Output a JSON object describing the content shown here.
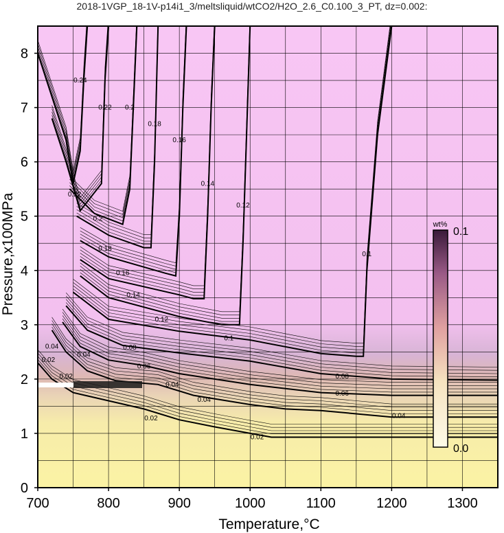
{
  "chart_data": {
    "type": "heatmap",
    "title": "2018-1VGP_18-1V-p14i1_3/meltsliquid/wtCO2/H2O_2.6_C0.100_3_PT, dz=0.002:",
    "xlabel": "Temperature,°C",
    "ylabel": "Pressure,x100MPa",
    "xlim": [
      700,
      1350
    ],
    "ylim": [
      0,
      8.5
    ],
    "x_ticks": [
      700,
      800,
      900,
      1000,
      1100,
      1200,
      1300
    ],
    "y_ticks": [
      0,
      1,
      2,
      3,
      4,
      5,
      6,
      7,
      8
    ],
    "grid": true,
    "z_unit": "wt%",
    "z_range": [
      0.0,
      0.1
    ],
    "colorbar": {
      "unit": "wt%",
      "max_label": "0.1",
      "min_label": "0.0",
      "placement": "right"
    },
    "contours": [
      {
        "level": "0.02",
        "points": [
          [
            700,
            2.3
          ],
          [
            720,
            2.0
          ],
          [
            750,
            1.75
          ],
          [
            800,
            1.6
          ],
          [
            850,
            1.45
          ],
          [
            900,
            1.25
          ],
          [
            950,
            1.12
          ],
          [
            1000,
            1.0
          ],
          [
            1030,
            0.93
          ],
          [
            1100,
            0.93
          ],
          [
            1200,
            0.93
          ],
          [
            1350,
            0.93
          ]
        ]
      },
      {
        "level": "0.04",
        "points": [
          [
            720,
            2.9
          ],
          [
            740,
            2.5
          ],
          [
            770,
            2.15
          ],
          [
            810,
            1.97
          ],
          [
            870,
            1.9
          ],
          [
            920,
            1.7
          ],
          [
            1000,
            1.53
          ],
          [
            1050,
            1.45
          ],
          [
            1100,
            1.42
          ],
          [
            1200,
            1.3
          ],
          [
            1350,
            1.3
          ]
        ]
      },
      {
        "level": "0.06",
        "points": [
          [
            735,
            3.05
          ],
          [
            760,
            2.6
          ],
          [
            800,
            2.35
          ],
          [
            850,
            2.25
          ],
          [
            900,
            2.1
          ],
          [
            1000,
            1.9
          ],
          [
            1100,
            1.75
          ],
          [
            1200,
            1.7
          ],
          [
            1350,
            1.7
          ]
        ]
      },
      {
        "level": "0.08",
        "points": [
          [
            740,
            3.35
          ],
          [
            770,
            2.9
          ],
          [
            820,
            2.62
          ],
          [
            900,
            2.48
          ],
          [
            1000,
            2.33
          ],
          [
            1100,
            2.1
          ],
          [
            1200,
            2.0
          ],
          [
            1350,
            1.98
          ]
        ]
      },
      {
        "level": "0.1",
        "points": [
          [
            750,
            3.6
          ],
          [
            800,
            3.1
          ],
          [
            900,
            2.88
          ],
          [
            1000,
            2.72
          ],
          [
            1100,
            2.47
          ],
          [
            1150,
            2.42
          ],
          [
            1160,
            2.42
          ],
          [
            1165,
            4.0
          ],
          [
            1180,
            6.5
          ],
          [
            1200,
            8.5
          ]
        ]
      },
      {
        "level": "0.12",
        "points": [
          [
            760,
            3.9
          ],
          [
            800,
            3.5
          ],
          [
            900,
            3.15
          ],
          [
            960,
            3.0
          ],
          [
            985,
            3.0
          ],
          [
            990,
            4.5
          ],
          [
            995,
            6.5
          ],
          [
            1000,
            8.5
          ]
        ]
      },
      {
        "level": "0.14",
        "points": [
          [
            760,
            4.2
          ],
          [
            800,
            3.85
          ],
          [
            900,
            3.55
          ],
          [
            920,
            3.48
          ],
          [
            935,
            3.48
          ],
          [
            940,
            5.0
          ],
          [
            945,
            7.0
          ],
          [
            950,
            8.5
          ]
        ]
      },
      {
        "level": "0.16",
        "points": [
          [
            760,
            4.55
          ],
          [
            800,
            4.25
          ],
          [
            880,
            3.95
          ],
          [
            895,
            3.9
          ],
          [
            900,
            5.0
          ],
          [
            905,
            7.0
          ],
          [
            910,
            8.5
          ]
        ]
      },
      {
        "level": "0.18",
        "points": [
          [
            755,
            5.0
          ],
          [
            800,
            4.65
          ],
          [
            850,
            4.42
          ],
          [
            860,
            4.42
          ],
          [
            865,
            6.0
          ],
          [
            870,
            8.5
          ]
        ]
      },
      {
        "level": "0.2",
        "points": [
          [
            745,
            5.5
          ],
          [
            780,
            5.05
          ],
          [
            820,
            4.85
          ],
          [
            830,
            5.5
          ],
          [
            835,
            7.0
          ],
          [
            840,
            8.5
          ]
        ]
      },
      {
        "level": "0.22",
        "points": [
          [
            720,
            6.8
          ],
          [
            740,
            6.0
          ],
          [
            760,
            5.1
          ],
          [
            790,
            5.6
          ],
          [
            795,
            7.5
          ],
          [
            800,
            8.5
          ]
        ]
      },
      {
        "level": "0.24",
        "points": [
          [
            700,
            8.0
          ],
          [
            720,
            7.2
          ],
          [
            740,
            6.4
          ],
          [
            750,
            5.6
          ],
          [
            760,
            6.2
          ],
          [
            765,
            7.5
          ],
          [
            770,
            8.5
          ]
        ]
      }
    ],
    "contour_labels": [
      {
        "text": "0.02",
        "x": 1010,
        "y": 0.93
      },
      {
        "text": "0.02",
        "x": 860,
        "y": 1.28
      },
      {
        "text": "0.02",
        "x": 740,
        "y": 2.05
      },
      {
        "text": "0.02",
        "x": 715,
        "y": 2.35
      },
      {
        "text": "0.04",
        "x": 1210,
        "y": 1.32
      },
      {
        "text": "0.04",
        "x": 935,
        "y": 1.62
      },
      {
        "text": "0.04",
        "x": 890,
        "y": 1.9
      },
      {
        "text": "0.04",
        "x": 765,
        "y": 2.45
      },
      {
        "text": "0.04",
        "x": 720,
        "y": 2.6
      },
      {
        "text": "0.06",
        "x": 1130,
        "y": 1.73
      },
      {
        "text": "0.06",
        "x": 850,
        "y": 2.23
      },
      {
        "text": "0.08",
        "x": 1130,
        "y": 2.05
      },
      {
        "text": "0.08",
        "x": 830,
        "y": 2.58
      },
      {
        "text": "0.1",
        "x": 1165,
        "y": 4.3
      },
      {
        "text": "0.1",
        "x": 970,
        "y": 2.75
      },
      {
        "text": "0.12",
        "x": 990,
        "y": 5.2
      },
      {
        "text": "0.12",
        "x": 875,
        "y": 3.1
      },
      {
        "text": "0.14",
        "x": 940,
        "y": 5.6
      },
      {
        "text": "0.14",
        "x": 835,
        "y": 3.55
      },
      {
        "text": "0.16",
        "x": 900,
        "y": 6.4
      },
      {
        "text": "0.16",
        "x": 820,
        "y": 3.95
      },
      {
        "text": "0.18",
        "x": 865,
        "y": 6.7
      },
      {
        "text": "0.18",
        "x": 795,
        "y": 4.4
      },
      {
        "text": "0.2",
        "x": 830,
        "y": 7.0
      },
      {
        "text": "0.2",
        "x": 785,
        "y": 4.95
      },
      {
        "text": "0.22",
        "x": 795,
        "y": 7.0
      },
      {
        "text": "0.22",
        "x": 752,
        "y": 5.4
      },
      {
        "text": "0.24",
        "x": 760,
        "y": 7.5
      }
    ]
  }
}
